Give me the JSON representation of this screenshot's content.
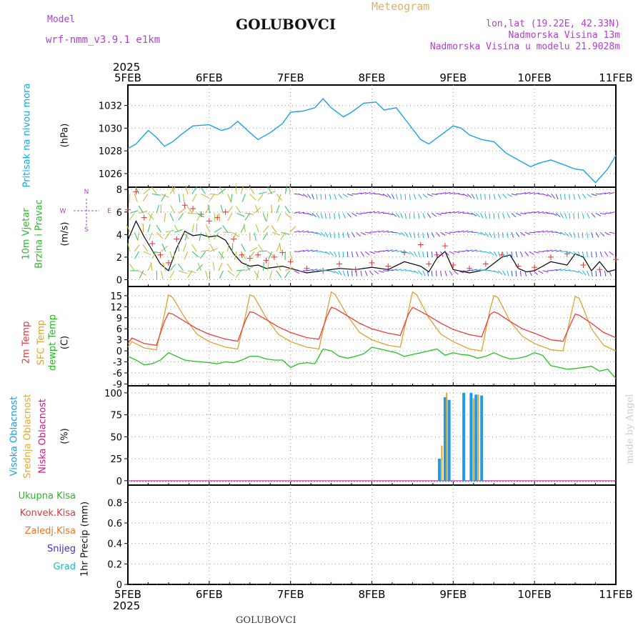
{
  "header": {
    "model_label": "Model",
    "model_name": "wrf-nmm_v3.9.1 e1km",
    "title": "GOLUBOVCI",
    "product": "Meteogram",
    "lonlat": "lon,lat (19.22E, 42.33N)",
    "elevation": "Nadmorska Visina 13m",
    "model_elevation": "Nadmorska Visina u modelu 21.9028m"
  },
  "footer": {
    "station": "GOLUBOVCI",
    "credit": "made by Angel"
  },
  "time_axis": {
    "year": "2025",
    "ticks": [
      "5FEB",
      "6FEB",
      "7FEB",
      "8FEB",
      "9FEB",
      "10FEB",
      "11FEB"
    ]
  },
  "panels": {
    "pressure": {
      "labels": [
        "Pritisak na nivou mora"
      ],
      "unit": "(hPa)"
    },
    "wind": {
      "labels": [
        "10m Vjetar",
        "Brzina i Pravac"
      ],
      "unit": "(m/s)",
      "compass": [
        "N",
        "E",
        "S",
        "W"
      ]
    },
    "temp": {
      "labels": [
        "2m Temp",
        "SFC Temp",
        "dewpt Temp"
      ],
      "unit": "(C)"
    },
    "cloud": {
      "labels": [
        "Visoka Oblacnost",
        "Srednja Oblacnost",
        "Niska Oblacnost"
      ],
      "unit": "(%)"
    },
    "precip": {
      "legend": [
        "Ukupna Kisa",
        "Konvek.Kisa",
        "Zaledj.Kisa",
        "Snijeg",
        "Grad"
      ],
      "unit": "1hr Precip (mm)"
    }
  },
  "colors": {
    "pressure": "#1aa3e8",
    "temp2m": "#f03c3c",
    "sfc": "#e0a030",
    "dew": "#22c322",
    "high_cloud": "#1e9be6",
    "mid_cloud": "#e6a828",
    "low_cloud": "#d2188c",
    "total_rain": "#22bb22",
    "conv_rain": "#ee3333",
    "frz_rain": "#f07020",
    "snow": "#3333dd",
    "hail": "#22bbbb",
    "header_purple": "#b040d0",
    "meteogram": "#e0b060"
  },
  "chart_data": [
    {
      "type": "line",
      "panel": "pressure",
      "x_unit": "days since 5FEB 00UTC",
      "xlim": [
        0,
        6
      ],
      "ylim": [
        1024.8,
        1033.8
      ],
      "yticks": [
        1026,
        1028,
        1030,
        1032
      ],
      "grid": true,
      "series": [
        {
          "name": "Pritisak na nivou mora",
          "x": [
            0,
            0.1,
            0.25,
            0.35,
            0.45,
            0.55,
            0.65,
            0.8,
            1.0,
            1.15,
            1.25,
            1.35,
            1.5,
            1.6,
            1.75,
            1.9,
            2.0,
            2.15,
            2.3,
            2.4,
            2.5,
            2.65,
            2.75,
            2.9,
            3.05,
            3.15,
            3.3,
            3.45,
            3.6,
            3.7,
            3.85,
            4.0,
            4.1,
            4.2,
            4.35,
            4.5,
            4.65,
            4.8,
            4.95,
            5.05,
            5.2,
            5.35,
            5.5,
            5.6,
            5.75,
            5.9,
            6.0
          ],
          "y": [
            1028.2,
            1028.6,
            1029.8,
            1029.2,
            1028.4,
            1028.8,
            1029.4,
            1030.2,
            1030.3,
            1029.8,
            1030.0,
            1030.6,
            1029.6,
            1029.0,
            1029.6,
            1030.4,
            1031.4,
            1031.5,
            1031.8,
            1032.6,
            1031.8,
            1031.0,
            1031.4,
            1032.2,
            1032.3,
            1031.6,
            1031.8,
            1030.4,
            1029.0,
            1028.6,
            1029.4,
            1030.2,
            1030.0,
            1029.4,
            1029.0,
            1028.8,
            1027.8,
            1027.2,
            1026.6,
            1026.9,
            1027.2,
            1026.8,
            1026.4,
            1026.3,
            1025.2,
            1026.4,
            1027.6
          ]
        }
      ]
    },
    {
      "type": "line",
      "panel": "wind",
      "x_unit": "days since 5FEB 00UTC",
      "xlim": [
        0,
        6
      ],
      "ylim": [
        -0.6,
        8.2
      ],
      "yticks": [
        0,
        2,
        4,
        6,
        8
      ],
      "grid": true,
      "series": [
        {
          "name": "10m wind speed",
          "x": [
            0,
            0.1,
            0.2,
            0.3,
            0.4,
            0.5,
            0.6,
            0.7,
            0.8,
            0.9,
            1.0,
            1.1,
            1.2,
            1.3,
            1.4,
            1.5,
            1.6,
            1.7,
            1.8,
            1.9,
            2.0,
            2.2,
            2.4,
            2.6,
            2.8,
            3.0,
            3.2,
            3.4,
            3.6,
            3.7,
            3.8,
            3.9,
            4.0,
            4.2,
            4.4,
            4.6,
            4.7,
            4.8,
            4.9,
            5.0,
            5.2,
            5.4,
            5.5,
            5.6,
            5.7,
            5.8,
            5.9,
            6.0
          ],
          "y": [
            3.5,
            5.2,
            3.8,
            2.6,
            1.4,
            0.8,
            2.8,
            4.3,
            3.9,
            4.0,
            3.8,
            3.9,
            3.5,
            2.3,
            1.5,
            1.2,
            1.3,
            1.0,
            1.1,
            1.2,
            1.0,
            0.6,
            0.8,
            1.0,
            0.9,
            1.1,
            0.9,
            1.6,
            1.2,
            0.7,
            1.9,
            2.5,
            0.9,
            0.6,
            0.9,
            2.0,
            2.2,
            1.0,
            0.7,
            0.8,
            1.6,
            1.3,
            2.3,
            2.0,
            0.8,
            1.6,
            0.7,
            0.9
          ]
        },
        {
          "name": "gust / max wind",
          "x": [
            0,
            0.1,
            0.2,
            0.3,
            0.4,
            0.5,
            0.6,
            0.7,
            0.8,
            0.9,
            1.0,
            1.1,
            1.2,
            1.3,
            1.4,
            1.5,
            1.6,
            1.7,
            1.8,
            1.9,
            2.0,
            2.2,
            2.4,
            2.6,
            2.8,
            3.0,
            3.2,
            3.4,
            3.6,
            3.7,
            3.8,
            3.9,
            4.0,
            4.2,
            4.4,
            4.6,
            4.8,
            5.0,
            5.2,
            5.4,
            5.6,
            5.8,
            6.0
          ],
          "y": [
            6.2,
            7.8,
            5.5,
            3.2,
            2.2,
            1.5,
            3.6,
            6.6,
            6.3,
            5.8,
            5.2,
            5.5,
            6.0,
            3.6,
            2.2,
            1.9,
            2.2,
            1.7,
            2.0,
            2.4,
            1.6,
            1.0,
            0.8,
            1.4,
            0.9,
            1.5,
            1.2,
            2.4,
            3.1,
            1.4,
            2.2,
            3.0,
            1.3,
            1.0,
            1.4,
            2.2,
            1.2,
            1.1,
            2.0,
            2.3,
            1.3,
            0.9,
            1.8
          ]
        }
      ]
    },
    {
      "type": "line",
      "panel": "temp",
      "x_unit": "days since 5FEB 00UTC",
      "xlim": [
        0,
        6
      ],
      "ylim": [
        -9.5,
        17.5
      ],
      "yticks": [
        -9,
        -6,
        -3,
        0,
        3,
        6,
        9,
        12,
        15
      ],
      "grid": true,
      "series": [
        {
          "name": "2m Temp",
          "x": [
            0,
            0.05,
            0.2,
            0.35,
            0.45,
            0.5,
            0.55,
            0.7,
            0.85,
            1.0,
            1.2,
            1.35,
            1.45,
            1.5,
            1.55,
            1.7,
            1.85,
            2.0,
            2.2,
            2.35,
            2.45,
            2.5,
            2.55,
            2.7,
            2.85,
            3.0,
            3.2,
            3.35,
            3.45,
            3.5,
            3.55,
            3.7,
            3.85,
            4.0,
            4.2,
            4.35,
            4.45,
            4.5,
            4.55,
            4.7,
            4.85,
            5.0,
            5.2,
            5.35,
            5.45,
            5.5,
            5.55,
            5.7,
            5.85,
            6.0
          ],
          "y": [
            2,
            3.5,
            2,
            1.5,
            8,
            10.3,
            10,
            8,
            6,
            4.5,
            3.2,
            2.6,
            8.5,
            10.6,
            10.4,
            8.5,
            6.5,
            5,
            3.6,
            3.2,
            9.5,
            11.8,
            11.5,
            9.5,
            7.5,
            6,
            4.8,
            4.2,
            10,
            11.8,
            11.3,
            9.5,
            7.5,
            5.8,
            4.4,
            3.8,
            9.8,
            10.6,
            10.2,
            8,
            6,
            4.8,
            3,
            2.6,
            7.6,
            10,
            9.7,
            7.5,
            5,
            3.6
          ]
        },
        {
          "name": "SFC Temp",
          "x": [
            0,
            0.05,
            0.2,
            0.35,
            0.45,
            0.5,
            0.55,
            0.7,
            0.85,
            1.0,
            1.2,
            1.35,
            1.45,
            1.5,
            1.55,
            1.7,
            1.85,
            2.0,
            2.2,
            2.35,
            2.45,
            2.5,
            2.55,
            2.7,
            2.85,
            3.0,
            3.2,
            3.35,
            3.45,
            3.5,
            3.55,
            3.7,
            3.85,
            4.0,
            4.2,
            4.35,
            4.45,
            4.5,
            4.55,
            4.7,
            4.85,
            5.0,
            5.2,
            5.35,
            5.45,
            5.5,
            5.55,
            5.7,
            5.85,
            6.0
          ],
          "y": [
            1,
            2.5,
            0.8,
            0.3,
            10,
            15.2,
            14.5,
            9,
            4.5,
            2.5,
            1,
            0.5,
            10,
            15.2,
            14.8,
            9,
            4.5,
            2.5,
            1,
            0.5,
            11,
            16,
            15.3,
            9.5,
            5,
            3,
            1.5,
            1,
            11,
            16,
            15.3,
            9,
            4.5,
            2.5,
            0.5,
            0,
            11,
            15,
            14.5,
            8,
            4,
            2,
            0.3,
            0,
            10,
            14.8,
            14.3,
            6,
            1.5,
            0
          ]
        },
        {
          "name": "dewpt Temp",
          "x": [
            0,
            0.1,
            0.2,
            0.3,
            0.4,
            0.5,
            0.6,
            0.7,
            0.8,
            0.9,
            1.0,
            1.1,
            1.2,
            1.3,
            1.4,
            1.5,
            1.6,
            1.7,
            1.8,
            1.9,
            2.0,
            2.1,
            2.2,
            2.3,
            2.4,
            2.5,
            2.6,
            2.7,
            2.8,
            2.9,
            3.0,
            3.1,
            3.2,
            3.3,
            3.4,
            3.5,
            3.6,
            3.7,
            3.8,
            3.9,
            4.0,
            4.1,
            4.2,
            4.3,
            4.4,
            4.5,
            4.6,
            4.7,
            4.8,
            4.9,
            5.0,
            5.1,
            5.2,
            5.3,
            5.4,
            5.5,
            5.6,
            5.7,
            5.8,
            5.9,
            6.0
          ],
          "y": [
            -1.5,
            -2.5,
            -3.8,
            -3.5,
            -2.5,
            -0.5,
            -1.5,
            -2.5,
            -2.8,
            -3,
            -3.2,
            -3.5,
            -3,
            -3.2,
            -2.5,
            -1.5,
            -1.5,
            -2.2,
            -2.5,
            -2.5,
            -4.5,
            -3.5,
            -3.2,
            -3.5,
            0.5,
            0,
            -1.5,
            -2,
            -1.5,
            -0.8,
            1,
            0.5,
            0,
            -0.5,
            -1.5,
            -1,
            -0.5,
            0,
            0.5,
            -1.2,
            -0.5,
            -1,
            -1.2,
            -2,
            -1.5,
            -0.5,
            -1.5,
            -2.2,
            -2,
            -1.5,
            -0.5,
            -1.2,
            -4,
            -4.5,
            -5,
            -4.8,
            -4.5,
            -4.2,
            -5.5,
            -5,
            -7.5
          ]
        }
      ]
    },
    {
      "type": "bar",
      "panel": "cloud",
      "x_unit": "days since 5FEB 00UTC",
      "xlim": [
        0,
        6
      ],
      "ylim": [
        -5,
        108
      ],
      "yticks": [
        0,
        25,
        50,
        75,
        100
      ],
      "grid": true,
      "series": [
        {
          "name": "Visoka Oblacnost",
          "x": [
            3.83,
            3.9,
            3.95,
            4.13,
            4.22,
            4.28,
            4.35
          ],
          "values": [
            25,
            95,
            92,
            100,
            100,
            98,
            97
          ]
        },
        {
          "name": "Srednja Oblacnost",
          "x": [
            3.86,
            3.92,
            4.25,
            4.31
          ],
          "values": [
            40,
            100,
            94,
            98
          ]
        },
        {
          "name": "Niska Oblacnost",
          "x": [],
          "values": []
        }
      ]
    },
    {
      "type": "bar",
      "panel": "precip",
      "x_unit": "days since 5FEB 00UTC",
      "xlim": [
        0,
        6
      ],
      "ylim": [
        0,
        0.97
      ],
      "yticks": [
        0,
        0.2,
        0.4,
        0.6,
        0.8
      ],
      "grid": true,
      "series": [
        {
          "name": "Ukupna Kisa",
          "x": [],
          "values": []
        },
        {
          "name": "Konvek.Kisa",
          "x": [],
          "values": []
        },
        {
          "name": "Zaledj.Kisa",
          "x": [],
          "values": []
        },
        {
          "name": "Snijeg",
          "x": [],
          "values": []
        },
        {
          "name": "Grad",
          "x": [],
          "values": []
        }
      ]
    }
  ]
}
